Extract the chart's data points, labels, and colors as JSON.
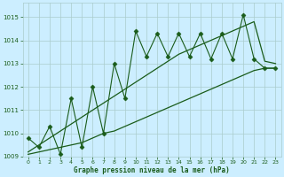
{
  "title": "Graphe pression niveau de la mer (hPa)",
  "bg_color": "#cceeff",
  "grid_color": "#aacccc",
  "line_color": "#1a5c1a",
  "xlim": [
    -0.5,
    23.5
  ],
  "ylim": [
    1009.0,
    1015.6
  ],
  "yticks": [
    1009,
    1010,
    1011,
    1012,
    1013,
    1014,
    1015
  ],
  "xticks": [
    0,
    1,
    2,
    3,
    4,
    5,
    6,
    7,
    8,
    9,
    10,
    11,
    12,
    13,
    14,
    15,
    16,
    17,
    18,
    19,
    20,
    21,
    22,
    23
  ],
  "hours": [
    0,
    1,
    2,
    3,
    4,
    5,
    6,
    7,
    8,
    9,
    10,
    11,
    12,
    13,
    14,
    15,
    16,
    17,
    18,
    19,
    20,
    21,
    22,
    23
  ],
  "pressure_main": [
    1009.8,
    1009.4,
    1010.3,
    1009.1,
    1011.5,
    1009.4,
    1012.0,
    1010.0,
    1013.0,
    1011.5,
    1014.4,
    1013.3,
    1014.3,
    1013.3,
    1014.3,
    1013.3,
    1014.3,
    1013.2,
    1014.3,
    1013.2,
    1015.1,
    1013.2,
    1012.8,
    1012.8
  ],
  "pressure_low": [
    1009.1,
    1009.2,
    1009.3,
    1009.4,
    1009.5,
    1009.6,
    1009.8,
    1010.0,
    1010.1,
    1010.3,
    1010.5,
    1010.7,
    1010.9,
    1011.1,
    1011.3,
    1011.5,
    1011.7,
    1011.9,
    1012.1,
    1012.3,
    1012.5,
    1012.7,
    1012.8,
    1012.8
  ],
  "pressure_high": [
    1009.2,
    1009.5,
    1009.8,
    1010.1,
    1010.4,
    1010.7,
    1011.0,
    1011.3,
    1011.6,
    1011.9,
    1012.2,
    1012.5,
    1012.8,
    1013.1,
    1013.4,
    1013.6,
    1013.8,
    1014.0,
    1014.2,
    1014.4,
    1014.6,
    1014.8,
    1013.1,
    1013.0
  ]
}
